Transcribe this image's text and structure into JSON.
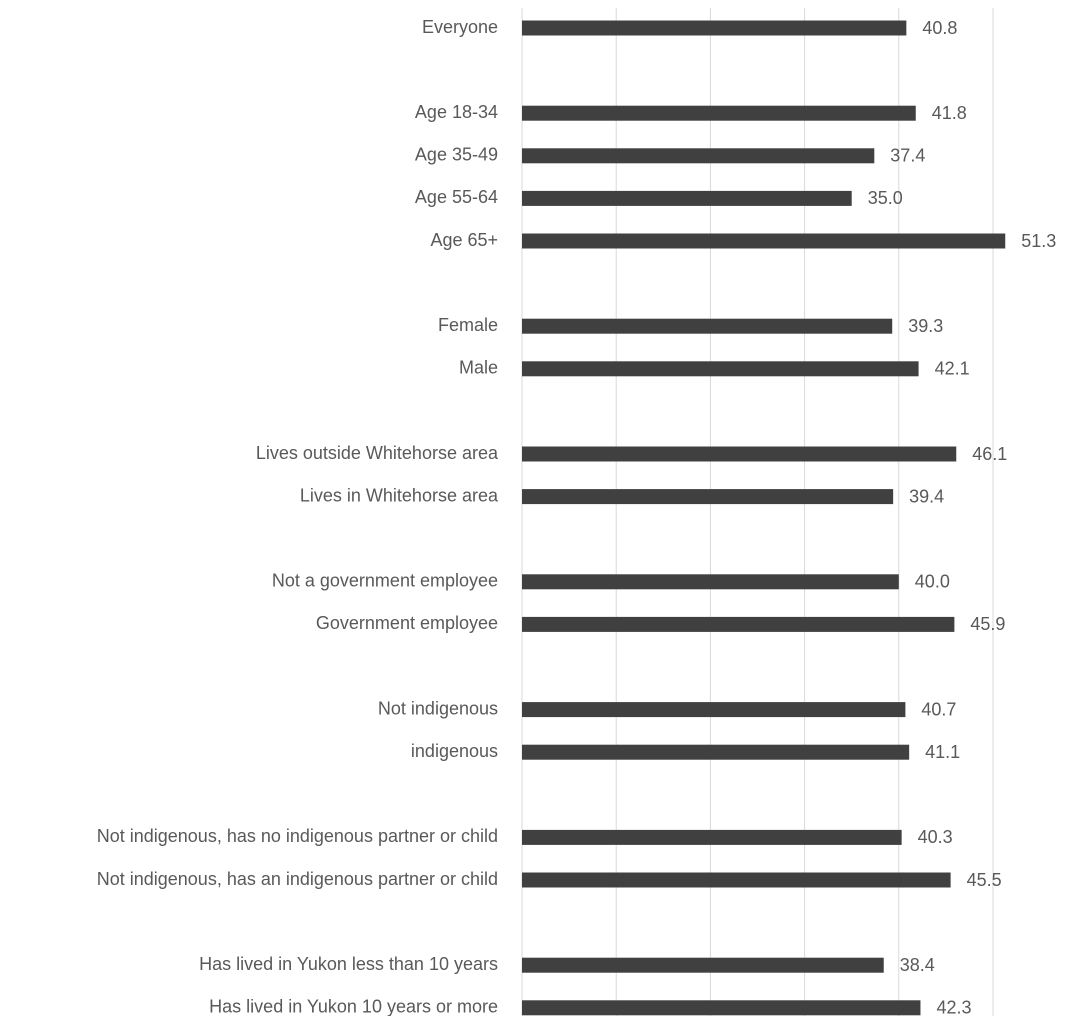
{
  "chart_data": {
    "type": "bar",
    "orientation": "horizontal",
    "title": "",
    "xlabel": "",
    "ylabel": "",
    "xlim": [
      0,
      55
    ],
    "grid": true,
    "legend": "none",
    "bar_color": "#404040",
    "grid_color": "#d9d9d9",
    "label_color": "#595959",
    "categories": [
      "Everyone",
      "Age 18-34",
      "Age 35-49",
      "Age 55-64",
      "Age 65+",
      "Female",
      "Male",
      "Lives outside Whitehorse area",
      "Lives in Whitehorse area",
      "Not a government employee",
      "Government employee",
      "Not indigenous",
      "indigenous",
      "Not indigenous, has no indigenous partner or child",
      "Not indigenous, has an indigenous partner or child",
      "Has lived in Yukon less than 10 years",
      "Has lived in Yukon 10 years or more"
    ],
    "groups": [
      1,
      4,
      2,
      2,
      2,
      2,
      2,
      2
    ],
    "values": [
      40.8,
      41.8,
      37.4,
      35.0,
      51.3,
      39.3,
      42.1,
      46.1,
      39.4,
      40.0,
      45.9,
      40.7,
      41.1,
      40.3,
      45.5,
      38.4,
      42.3
    ],
    "value_labels": [
      "40.8",
      "41.8",
      "37.4",
      "35.0",
      "51.3",
      "39.3",
      "42.1",
      "46.1",
      "39.4",
      "40.0",
      "45.9",
      "40.7",
      "41.1",
      "40.3",
      "45.5",
      "38.4",
      "42.3"
    ]
  }
}
